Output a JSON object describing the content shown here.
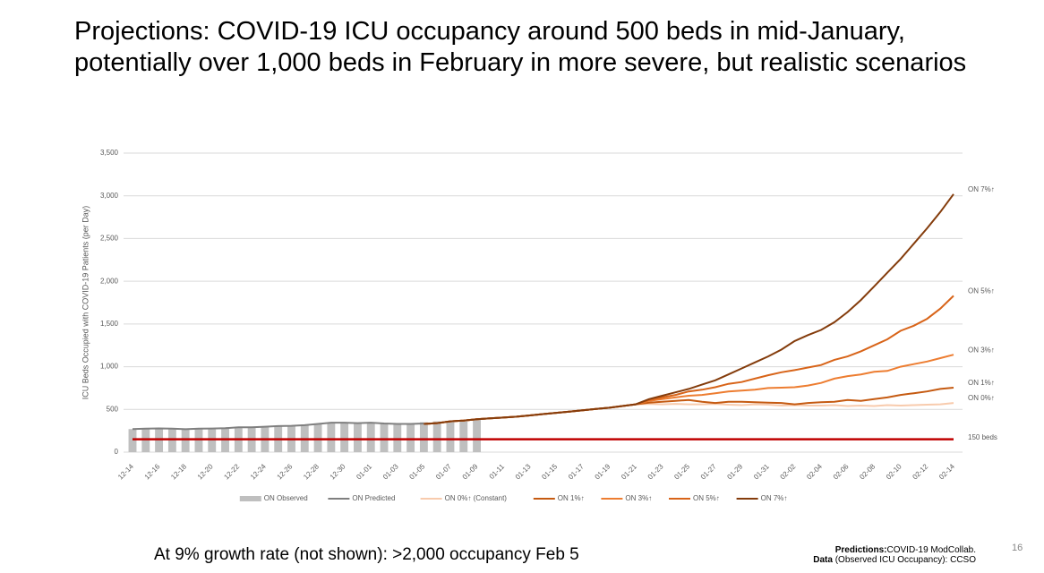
{
  "title": "Projections: COVID-19 ICU occupancy around 500 beds in mid-January, potentially over 1,000 beds in February in more severe, but realistic scenarios",
  "chart_data": {
    "type": "line",
    "ylabel": "ICU Beds Occupied with COVID-19 Patients (per Day)",
    "categories": [
      "12-14",
      null,
      "12-16",
      null,
      "12-18",
      null,
      "12-20",
      null,
      "12-22",
      null,
      "12-24",
      null,
      "12-26",
      null,
      "12-28",
      null,
      "12-30",
      null,
      "01-01",
      null,
      "01-03",
      null,
      "01-05",
      null,
      "01-07",
      null,
      "01-09",
      null,
      "01-11",
      null,
      "01-13",
      null,
      "01-15",
      null,
      "01-17",
      null,
      "01-19",
      null,
      "01-21",
      null,
      "01-23",
      null,
      "01-25",
      null,
      "01-27",
      null,
      "01-29",
      null,
      "01-31",
      null,
      "02-02",
      null,
      "02-04",
      null,
      "02-06",
      null,
      "02-08",
      null,
      "02-10",
      null,
      "02-12",
      null,
      "02-14"
    ],
    "ylim": [
      0,
      3500
    ],
    "yticks": [
      0,
      500,
      {
        "value": 1000,
        "label": "1,000"
      },
      {
        "value": 1500,
        "label": "1,500"
      },
      {
        "value": 2000,
        "label": "2,000"
      },
      {
        "value": 2500,
        "label": "2,500"
      },
      {
        "value": 3000,
        "label": "3,000"
      },
      {
        "value": 3500,
        "label": "3,500"
      }
    ],
    "grid": true,
    "legend": "bottom",
    "threshold": {
      "value": 150,
      "label": "150 beds",
      "color": "#c00000"
    },
    "series": [
      {
        "name": "ON Observed",
        "type": "bar",
        "color": "#bfbfbf",
        "values": [
          270,
          275,
          275,
          275,
          265,
          270,
          275,
          280,
          285,
          285,
          295,
          300,
          305,
          310,
          330,
          340,
          345,
          340,
          350,
          340,
          330,
          330,
          350,
          360,
          350,
          360,
          380,
          null,
          null,
          null,
          null,
          null,
          null,
          null,
          null,
          null,
          null,
          null,
          null,
          null,
          null,
          null,
          null,
          null,
          null,
          null,
          null,
          null,
          null,
          null,
          null,
          null,
          null,
          null,
          null,
          null,
          null,
          null,
          null,
          null,
          null,
          null,
          null
        ]
      },
      {
        "name": "ON Predicted",
        "type": "line",
        "color": "#7f7f7f",
        "values": [
          270,
          275,
          278,
          275,
          268,
          275,
          277,
          280,
          290,
          290,
          298,
          305,
          308,
          315,
          330,
          345,
          345,
          340,
          345,
          335,
          330,
          330,
          335,
          null,
          null,
          null,
          null,
          null,
          null,
          null,
          null,
          null,
          null,
          null,
          null,
          null,
          null,
          null,
          null,
          null,
          null,
          null,
          null,
          null,
          null,
          null,
          null,
          null,
          null,
          null,
          null,
          null,
          null,
          null,
          null,
          null,
          null,
          null,
          null,
          null,
          null,
          null,
          null
        ]
      },
      {
        "name": "ON 0%↑ (Constant)",
        "end_label": "ON 0%↑",
        "type": "line",
        "color": "#f8cbad",
        "values": [
          null,
          null,
          null,
          null,
          null,
          null,
          null,
          null,
          null,
          null,
          null,
          null,
          null,
          null,
          null,
          null,
          null,
          null,
          null,
          null,
          null,
          null,
          330,
          340,
          360,
          370,
          385,
          395,
          405,
          415,
          430,
          445,
          460,
          475,
          490,
          505,
          520,
          540,
          560,
          565,
          560,
          565,
          560,
          560,
          565,
          555,
          550,
          560,
          555,
          545,
          550,
          545,
          545,
          550,
          540,
          545,
          540,
          550,
          545,
          550,
          555,
          560,
          575
        ]
      },
      {
        "name": "ON 1%↑",
        "end_label": "ON 1%↑",
        "type": "line",
        "color": "#c55a11",
        "values": [
          null,
          null,
          null,
          null,
          null,
          null,
          null,
          null,
          null,
          null,
          null,
          null,
          null,
          null,
          null,
          null,
          null,
          null,
          null,
          null,
          null,
          null,
          330,
          340,
          360,
          370,
          385,
          395,
          405,
          415,
          430,
          445,
          460,
          475,
          490,
          505,
          520,
          540,
          560,
          580,
          590,
          600,
          610,
          590,
          575,
          590,
          590,
          585,
          580,
          575,
          560,
          575,
          585,
          590,
          610,
          600,
          620,
          640,
          670,
          690,
          710,
          740,
          755
        ]
      },
      {
        "name": "ON 3%↑",
        "end_label": "ON 3%↑",
        "type": "line",
        "color": "#ed7d31",
        "values": [
          null,
          null,
          null,
          null,
          null,
          null,
          null,
          null,
          null,
          null,
          null,
          null,
          null,
          null,
          null,
          null,
          null,
          null,
          null,
          null,
          null,
          null,
          330,
          340,
          360,
          370,
          385,
          395,
          405,
          415,
          430,
          445,
          460,
          475,
          490,
          505,
          520,
          540,
          560,
          600,
          620,
          640,
          660,
          670,
          690,
          710,
          720,
          730,
          750,
          755,
          760,
          780,
          810,
          860,
          890,
          910,
          940,
          950,
          1000,
          1030,
          1060,
          1100,
          1140
        ]
      },
      {
        "name": "ON 5%↑",
        "end_label": "ON 5%↑",
        "type": "line",
        "color": "#d86419",
        "values": [
          null,
          null,
          null,
          null,
          null,
          null,
          null,
          null,
          null,
          null,
          null,
          null,
          null,
          null,
          null,
          null,
          null,
          null,
          null,
          null,
          null,
          null,
          330,
          340,
          360,
          370,
          385,
          395,
          405,
          415,
          430,
          445,
          460,
          475,
          490,
          505,
          520,
          540,
          560,
          610,
          640,
          670,
          710,
          730,
          760,
          800,
          820,
          860,
          900,
          935,
          960,
          990,
          1020,
          1080,
          1120,
          1180,
          1250,
          1320,
          1420,
          1480,
          1560,
          1680,
          1830
        ]
      },
      {
        "name": "ON 7%↑",
        "end_label": "ON 7%↑",
        "type": "line",
        "color": "#843c0c",
        "values": [
          null,
          null,
          null,
          null,
          null,
          null,
          null,
          null,
          null,
          null,
          null,
          null,
          null,
          null,
          null,
          null,
          null,
          null,
          null,
          null,
          null,
          null,
          330,
          340,
          360,
          370,
          385,
          395,
          405,
          415,
          430,
          445,
          460,
          475,
          490,
          505,
          520,
          540,
          560,
          620,
          660,
          700,
          740,
          790,
          840,
          910,
          980,
          1050,
          1120,
          1200,
          1300,
          1370,
          1430,
          1520,
          1640,
          1780,
          1940,
          2100,
          2260,
          2440,
          2620,
          2810,
          3020
        ]
      }
    ]
  },
  "footer": {
    "note": "At 9% growth rate (not shown): >2,000 occupancy Feb 5",
    "pred_label": "Predictions:",
    "pred_text": "COVID-19 ModCollab.",
    "data_label": "Data",
    "data_text": " (Observed ICU Occupancy): CCSO",
    "page": "16"
  }
}
